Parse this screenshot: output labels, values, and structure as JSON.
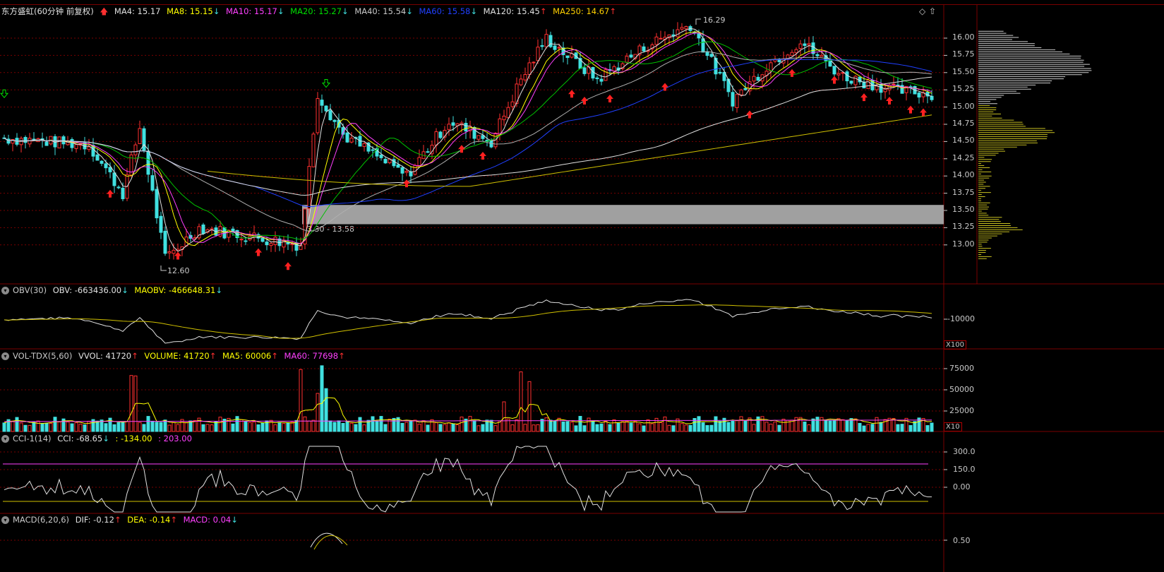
{
  "header": {
    "stock_name": "东方盛虹",
    "period": "(60分钟 前复权)",
    "ma_items": [
      {
        "label": "MA4: 15.17",
        "color": "#e0e0e0",
        "arrow": ""
      },
      {
        "label": "MA8: 15.15",
        "color": "#ffff00",
        "arrow": "↓"
      },
      {
        "label": "MA10: 15.17",
        "color": "#ff40ff",
        "arrow": "↓"
      },
      {
        "label": "MA20: 15.27",
        "color": "#00e000",
        "arrow": "↓"
      },
      {
        "label": "MA40: 15.54",
        "color": "#c8c8c8",
        "arrow": "↓"
      },
      {
        "label": "MA60: 15.58",
        "color": "#2040ff",
        "arrow": "↓"
      },
      {
        "label": "MA120: 15.45",
        "color": "#e0e0e0",
        "arrow": "↑"
      },
      {
        "label": "MA250: 14.67",
        "color": "#ffd000",
        "arrow": "↑"
      }
    ]
  },
  "price_axis": [
    "16.00",
    "15.75",
    "15.50",
    "15.25",
    "15.00",
    "14.75",
    "14.50",
    "14.25",
    "14.00",
    "13.75",
    "13.50",
    "13.25",
    "13.00"
  ],
  "annotations": {
    "high": "16.29",
    "low": "12.60",
    "zone": "13.30 - 13.58"
  },
  "obv": {
    "name": "OBV(30)",
    "value": "OBV: -663436.00",
    "value_arrow": "↓",
    "ma": "MAOBV: -466648.31",
    "ma_arrow": "↓",
    "axis_label": "-10000",
    "multiplier": "X100"
  },
  "vol": {
    "name": "VOL-TDX(5,60)",
    "vvol": "VVOL: 41720",
    "volume": "VOLUME: 41720",
    "ma5": "MA5: 60006",
    "ma60": "MA60: 77698",
    "axis": [
      "75000",
      "50000",
      "25000"
    ],
    "multiplier": "X10"
  },
  "cci": {
    "name": "CCI-1(14)",
    "value": "CCI: -68.65",
    "value_arrow": "↓",
    "low": ": -134.00",
    "high": ": 203.00",
    "axis": [
      "300.0",
      "150.0",
      "0.00"
    ]
  },
  "macd": {
    "name": "MACD(6,20,6)",
    "dif": "DIF: -0.12",
    "dea": "DEA: -0.14",
    "macd": "MACD: 0.04",
    "axis": [
      "0.50"
    ]
  },
  "colors": {
    "up": "#ff3030",
    "down": "#40e0e0",
    "grid": "#7a0000",
    "zone": "#a0a0a0"
  }
}
